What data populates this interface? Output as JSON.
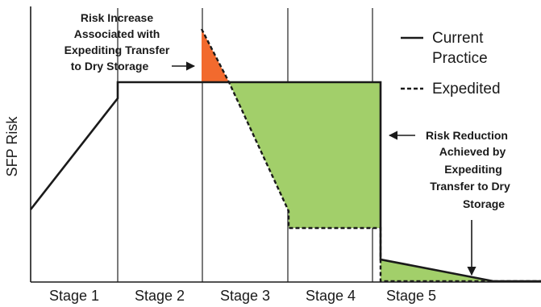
{
  "y_axis_label": "SFP Risk",
  "stages": [
    "Stage 1",
    "Stage 2",
    "Stage 3",
    "Stage 4",
    "Stage 5"
  ],
  "legend": {
    "current_line1": "Current",
    "current_line2": "Practice",
    "expedited": "Expedited"
  },
  "annotations": {
    "risk_increase": [
      "Risk Increase",
      "Associated with",
      "Expediting Transfer",
      "to Dry Storage"
    ],
    "risk_reduction": [
      "Risk Reduction",
      "Achieved by",
      "Expediting",
      "Transfer to Dry",
      "Storage"
    ]
  },
  "colors": {
    "increase": "#f26a2e",
    "reduction": "#a2cf6a",
    "line": "#1a1a1a",
    "divider": "#333333"
  },
  "icons": [
    "arrow-right-icon",
    "arrow-left-icon",
    "arrow-down-icon"
  ]
}
